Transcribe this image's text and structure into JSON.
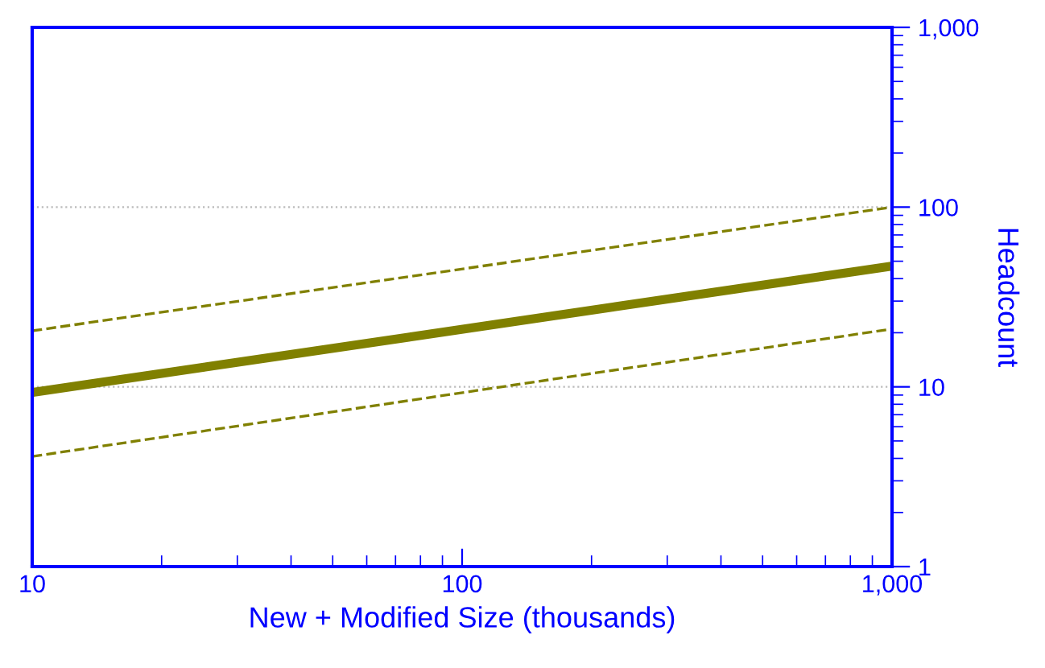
{
  "chart_data": {
    "type": "line",
    "xlabel": "New + Modified Size (thousands)",
    "ylabel": "Headcount",
    "x": [
      10,
      1000
    ],
    "series": [
      {
        "color": "#808000",
        "values": [
          20.5,
          100
        ],
        "line_style": "dashed"
      },
      {
        "color": "#808000",
        "values": [
          9.3,
          47
        ],
        "line_style": "solid"
      },
      {
        "color": "#808000",
        "values": [
          4.1,
          21
        ],
        "line_style": "dashed"
      }
    ],
    "log": "xy",
    "xlim": [
      10,
      1000
    ],
    "ylim": [
      1,
      1000
    ],
    "xticks": [
      10,
      100,
      {
        "value": 1000,
        "label": "1,000"
      }
    ],
    "yticks": [
      1,
      10,
      100,
      {
        "value": 1000,
        "label": "1,000"
      }
    ],
    "grid": "y",
    "marker": "none"
  }
}
